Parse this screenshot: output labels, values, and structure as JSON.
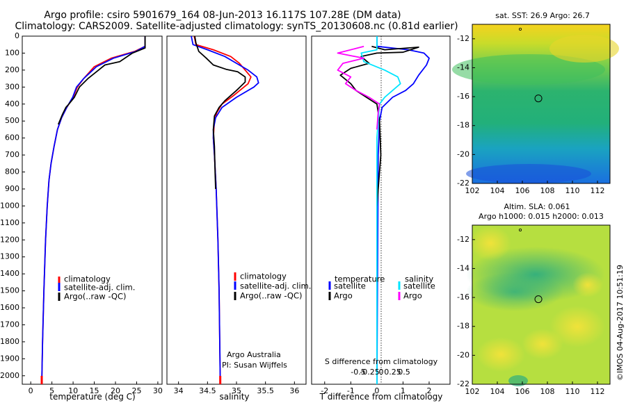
{
  "header": {
    "title_line1": "Argo profile: csiro 5901679_164 08-Jun-2013 16.117S 107.28E (DM data)",
    "title_line2": "Climatology: CARS2009. Satellite-adjusted climatology: synTS_20130608.nc (0.81d earlier)"
  },
  "colors": {
    "climatology": "#ff0000",
    "satellite": "#0000ff",
    "argo": "#000000",
    "salinity_sat": "#00e5ff",
    "salinity_argo": "#ff00ff"
  },
  "depth_axis": {
    "range": [
      0,
      2050
    ],
    "ticks": [
      "0",
      "100",
      "200",
      "300",
      "400",
      "500",
      "600",
      "700",
      "800",
      "900",
      "1000",
      "1100",
      "1200",
      "1300",
      "1400",
      "1500",
      "1600",
      "1700",
      "1800",
      "1900",
      "2000"
    ]
  },
  "chart_data": [
    {
      "type": "line",
      "name": "temperature",
      "xlabel": "temperature (deg C)",
      "xlim": [
        -2,
        31
      ],
      "xticks": [
        "0",
        "5",
        "10",
        "15",
        "20",
        "25",
        "30"
      ],
      "legend": [
        "climatology",
        "satellite-adj. clim.",
        "Argo(..raw -QC)"
      ],
      "series": [
        {
          "name": "climatology",
          "color": "#ff0000",
          "points": [
            [
              27.0,
              0
            ],
            [
              27.0,
              60
            ],
            [
              24.5,
              90
            ],
            [
              19.0,
              130
            ],
            [
              15.0,
              180
            ],
            [
              12.5,
              250
            ],
            [
              11.0,
              300
            ],
            [
              10.0,
              360
            ],
            [
              8.5,
              420
            ],
            [
              7.3,
              480
            ],
            [
              6.3,
              550
            ],
            [
              5.5,
              650
            ],
            [
              4.8,
              750
            ],
            [
              4.3,
              850
            ],
            [
              3.9,
              1000
            ],
            [
              3.5,
              1200
            ],
            [
              3.1,
              1500
            ],
            [
              2.8,
              1800
            ],
            [
              2.6,
              2050
            ]
          ]
        },
        {
          "name": "satellite-adj. clim.",
          "color": "#0000ff",
          "points": [
            [
              27.0,
              0
            ],
            [
              27.0,
              60
            ],
            [
              24.8,
              90
            ],
            [
              19.5,
              130
            ],
            [
              15.5,
              180
            ],
            [
              12.5,
              250
            ],
            [
              10.8,
              300
            ],
            [
              9.9,
              360
            ],
            [
              8.5,
              420
            ],
            [
              7.3,
              480
            ],
            [
              6.3,
              550
            ],
            [
              5.5,
              650
            ],
            [
              4.8,
              750
            ],
            [
              4.3,
              850
            ],
            [
              3.9,
              1000
            ],
            [
              3.5,
              1200
            ],
            [
              3.1,
              1500
            ],
            [
              2.8,
              1800
            ],
            [
              2.6,
              2050
            ]
          ]
        },
        {
          "name": "Argo(..raw -QC)",
          "color": "#000000",
          "points": [
            [
              27.0,
              0
            ],
            [
              27.0,
              70
            ],
            [
              24.0,
              100
            ],
            [
              21.0,
              150
            ],
            [
              17.5,
              170
            ],
            [
              16.0,
              200
            ],
            [
              13.5,
              250
            ],
            [
              11.5,
              300
            ],
            [
              10.3,
              360
            ],
            [
              9.0,
              400
            ],
            [
              8.3,
              420
            ],
            [
              7.5,
              460
            ],
            [
              6.5,
              520
            ]
          ]
        }
      ]
    },
    {
      "type": "line",
      "name": "salinity",
      "xlabel": "salinity",
      "xlim": [
        33.8,
        36.2
      ],
      "xticks": [
        "34",
        "34.5",
        "35",
        "35.5",
        "36"
      ],
      "legend": [
        "climatology",
        "satellite-adj. clim.",
        "Argo(..raw -QC)"
      ],
      "annotation": [
        "Argo Australia",
        "PI: Susan Wijffels"
      ],
      "series": [
        {
          "name": "climatology",
          "color": "#ff0000",
          "points": [
            [
              34.27,
              0
            ],
            [
              34.3,
              50
            ],
            [
              34.6,
              80
            ],
            [
              34.9,
              120
            ],
            [
              35.05,
              160
            ],
            [
              35.15,
              200
            ],
            [
              35.25,
              240
            ],
            [
              35.2,
              280
            ],
            [
              34.95,
              350
            ],
            [
              34.75,
              400
            ],
            [
              34.66,
              450
            ],
            [
              34.62,
              500
            ],
            [
              34.6,
              600
            ],
            [
              34.62,
              700
            ],
            [
              34.65,
              900
            ],
            [
              34.68,
              1200
            ],
            [
              34.7,
              1500
            ],
            [
              34.72,
              2050
            ]
          ]
        },
        {
          "name": "satellite-adj. clim.",
          "color": "#0000ff",
          "points": [
            [
              34.22,
              0
            ],
            [
              34.25,
              50
            ],
            [
              34.5,
              80
            ],
            [
              34.8,
              120
            ],
            [
              35.0,
              160
            ],
            [
              35.2,
              200
            ],
            [
              35.35,
              240
            ],
            [
              35.38,
              275
            ],
            [
              35.3,
              300
            ],
            [
              35.0,
              360
            ],
            [
              34.75,
              420
            ],
            [
              34.64,
              480
            ],
            [
              34.6,
              550
            ],
            [
              34.6,
              600
            ],
            [
              34.62,
              700
            ],
            [
              34.65,
              900
            ],
            [
              34.68,
              1200
            ],
            [
              34.7,
              1500
            ],
            [
              34.72,
              2050
            ]
          ]
        },
        {
          "name": "Argo(..raw -QC)",
          "color": "#000000",
          "points": [
            [
              34.28,
              0
            ],
            [
              34.3,
              40
            ],
            [
              34.35,
              90
            ],
            [
              34.48,
              130
            ],
            [
              34.6,
              170
            ],
            [
              34.82,
              195
            ],
            [
              35.02,
              210
            ],
            [
              35.15,
              240
            ],
            [
              35.15,
              270
            ],
            [
              35.0,
              320
            ],
            [
              34.8,
              380
            ],
            [
              34.7,
              420
            ],
            [
              34.62,
              470
            ],
            [
              34.6,
              550
            ],
            [
              34.62,
              650
            ],
            [
              34.63,
              800
            ],
            [
              34.64,
              900
            ]
          ]
        }
      ]
    },
    {
      "type": "line",
      "name": "difference",
      "xlabel": "T difference from climatology",
      "xlabel_top": "S difference from climatology",
      "xlim": [
        -2.5,
        2.8
      ],
      "xticks": [
        "-2",
        "-1",
        "0",
        "1",
        "2"
      ],
      "xticks_top": [
        "-0.5",
        "-0.25",
        "0",
        "0.25",
        "0.5"
      ],
      "legend_temperature_title": "temperature",
      "legend_salinity_title": "salinity",
      "legend_entries": [
        "satellite",
        "Argo",
        "satellite",
        "Argo"
      ],
      "series": [
        {
          "name": "temperature satellite",
          "color": "#0000ff",
          "points": [
            [
              0,
              0
            ],
            [
              0,
              60
            ],
            [
              1.2,
              80
            ],
            [
              1.8,
              100
            ],
            [
              2.0,
              130
            ],
            [
              1.9,
              170
            ],
            [
              1.6,
              230
            ],
            [
              1.4,
              280
            ],
            [
              1.1,
              320
            ],
            [
              0.6,
              360
            ],
            [
              0.2,
              420
            ],
            [
              0.1,
              500
            ],
            [
              0.05,
              700
            ],
            [
              0,
              2050
            ]
          ]
        },
        {
          "name": "temperature Argo",
          "color": "#000000",
          "points": [
            [
              -0.2,
              60
            ],
            [
              0.3,
              80
            ],
            [
              1.6,
              65
            ],
            [
              1.0,
              95
            ],
            [
              0.0,
              100
            ],
            [
              -0.6,
              120
            ],
            [
              -0.3,
              160
            ],
            [
              -1.0,
              190
            ],
            [
              -1.4,
              230
            ],
            [
              -1.0,
              280
            ],
            [
              -0.8,
              320
            ],
            [
              -0.4,
              360
            ],
            [
              0.0,
              400
            ],
            [
              0.1,
              500
            ],
            [
              0.15,
              700
            ],
            [
              0.05,
              900
            ],
            [
              0,
              1000
            ]
          ]
        },
        {
          "name": "salinity satellite",
          "color": "#00e5ff",
          "points": [
            [
              0,
              0
            ],
            [
              0,
              80
            ],
            [
              -0.6,
              100
            ],
            [
              -0.5,
              150
            ],
            [
              0.3,
              200
            ],
            [
              0.8,
              240
            ],
            [
              0.9,
              280
            ],
            [
              0.6,
              320
            ],
            [
              0.3,
              360
            ],
            [
              0.1,
              400
            ],
            [
              0,
              600
            ],
            [
              0,
              2050
            ]
          ]
        },
        {
          "name": "salinity Argo",
          "color": "#ff00ff",
          "points": [
            [
              -0.5,
              60
            ],
            [
              -1.0,
              80
            ],
            [
              -1.5,
              100
            ],
            [
              -0.5,
              130
            ],
            [
              -1.3,
              160
            ],
            [
              -1.5,
              200
            ],
            [
              -1.0,
              240
            ],
            [
              -1.2,
              280
            ],
            [
              -0.8,
              320
            ],
            [
              -0.3,
              360
            ],
            [
              0.1,
              400
            ],
            [
              0.05,
              450
            ],
            [
              0,
              550
            ]
          ]
        }
      ]
    },
    {
      "type": "heatmap",
      "name": "sst_map",
      "title": "sat. SST: 26.9 Argo: 26.7",
      "xlim": [
        102,
        113
      ],
      "ylim": [
        -22,
        -11
      ],
      "xticks": [
        "102",
        "104",
        "106",
        "108",
        "110",
        "112"
      ],
      "yticks": [
        "-12",
        "-14",
        "-16",
        "-18",
        "-20",
        "-22"
      ],
      "argo_position": [
        107.28,
        -16.12
      ]
    },
    {
      "type": "heatmap",
      "name": "sla_map",
      "title_line1": "Altim. SLA: 0.061",
      "title_line2": "Argo h1000: 0.015 h2000: 0.013",
      "xlim": [
        102,
        113
      ],
      "ylim": [
        -22,
        -11
      ],
      "xticks": [
        "102",
        "104",
        "106",
        "108",
        "110",
        "112"
      ],
      "yticks": [
        "-12",
        "-14",
        "-16",
        "-18",
        "-20",
        "-22"
      ],
      "argo_position": [
        107.28,
        -16.12
      ]
    }
  ],
  "footer": {
    "stamp": "©IMOS 04-Aug-2017 10:51:19"
  }
}
